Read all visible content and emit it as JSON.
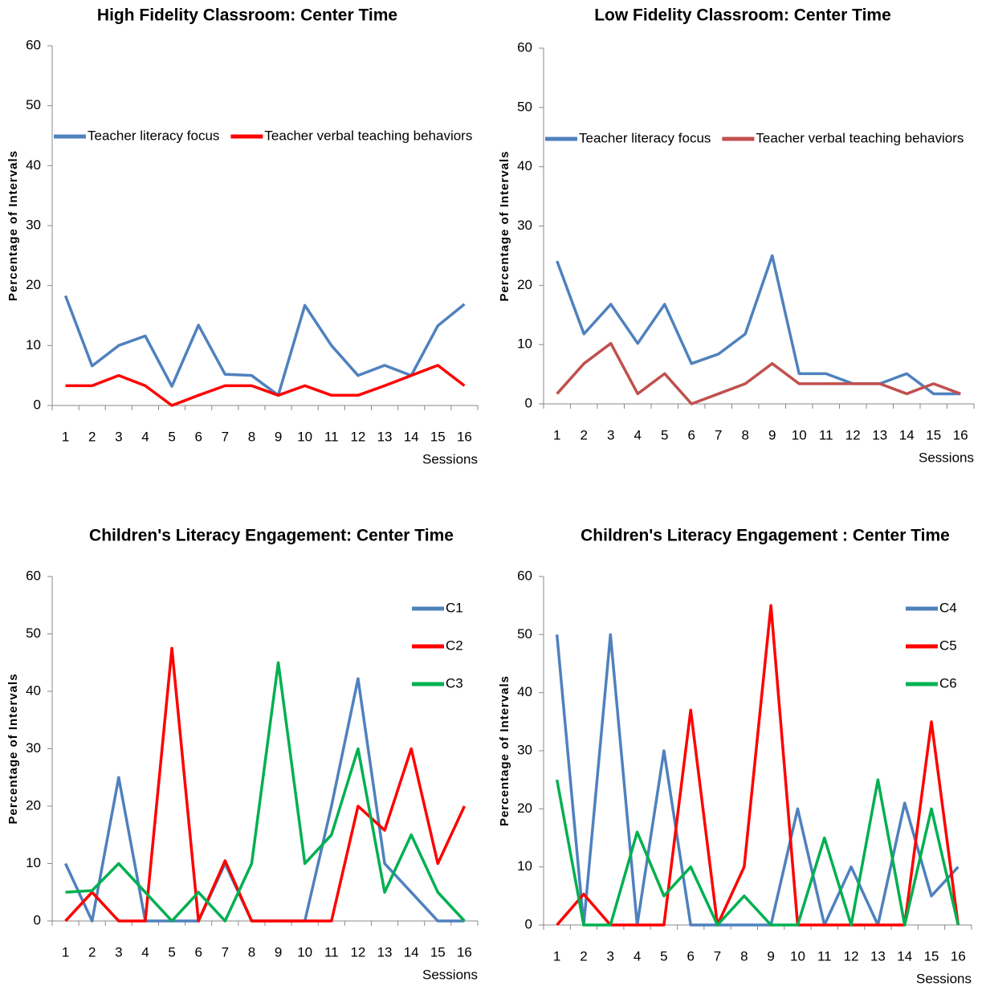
{
  "chart_data": [
    {
      "type": "line",
      "title": "High Fidelity  Classroom: Center Time",
      "y_label": "Percentage of Intervals",
      "x_label": "Sessions",
      "categories": [
        "1",
        "2",
        "3",
        "4",
        "5",
        "6",
        "7",
        "8",
        "9",
        "10",
        "11",
        "12",
        "13",
        "14",
        "15",
        "16"
      ],
      "series": [
        {
          "name": "Teacher literacy focus",
          "color": "#4f81bd",
          "values": [
            18.3,
            6.6,
            10,
            11.6,
            3.2,
            13.4,
            5.2,
            5,
            1.7,
            16.7,
            10,
            5,
            6.7,
            5,
            13.3,
            16.9
          ]
        },
        {
          "name": "Teacher verbal teaching behaviors",
          "color": "#ff0000",
          "values": [
            3.3,
            3.3,
            5,
            3.3,
            0,
            1.7,
            3.3,
            3.3,
            1.7,
            3.3,
            1.7,
            1.7,
            3.3,
            5,
            6.7,
            3.3
          ]
        }
      ],
      "ylim": [
        0,
        60
      ],
      "yticks": [
        0,
        10,
        20,
        30,
        40,
        50,
        60
      ],
      "legend": "top"
    },
    {
      "type": "line",
      "title": "Low Fidelity  Classroom: Center Time",
      "y_label": "Percentage of Intervals",
      "x_label": "Sessions",
      "categories": [
        "1",
        "2",
        "3",
        "4",
        "5",
        "6",
        "7",
        "8",
        "9",
        "10",
        "11",
        "12",
        "13",
        "14",
        "15",
        "16"
      ],
      "series": [
        {
          "name": "Teacher literacy focus",
          "color": "#4f81bd",
          "values": [
            24.1,
            11.8,
            16.8,
            10.2,
            16.8,
            6.8,
            8.4,
            11.8,
            25,
            5.1,
            5.1,
            3.4,
            3.4,
            5.1,
            1.7,
            1.7
          ]
        },
        {
          "name": "Teacher verbal teaching behaviors",
          "color": "#c0504d",
          "values": [
            1.7,
            6.8,
            10.2,
            1.7,
            5.1,
            0,
            1.7,
            3.4,
            6.8,
            3.4,
            3.4,
            3.4,
            3.4,
            1.7,
            3.4,
            1.7
          ]
        }
      ],
      "ylim": [
        0,
        60
      ],
      "yticks": [
        0,
        10,
        20,
        30,
        40,
        50,
        60
      ],
      "legend": "top"
    },
    {
      "type": "line",
      "title": "Children's Literacy Engagement: Center Time",
      "y_label": "Percentage of Intervals",
      "x_label": "Sessions",
      "categories": [
        "1",
        "2",
        "3",
        "4",
        "5",
        "6",
        "7",
        "8",
        "9",
        "10",
        "11",
        "12",
        "13",
        "14",
        "15",
        "16"
      ],
      "series": [
        {
          "name": "C1",
          "color": "#4f81bd",
          "values": [
            10,
            0,
            25,
            0,
            0,
            0,
            10,
            0,
            0,
            0,
            20,
            42.2,
            10,
            5,
            0,
            0
          ]
        },
        {
          "name": "C2",
          "color": "#ff0000",
          "values": [
            0,
            5,
            0,
            0,
            47.5,
            0,
            10.5,
            0,
            0,
            0,
            0,
            20,
            15.8,
            30,
            10,
            20
          ]
        },
        {
          "name": "C3",
          "color": "#00b050",
          "values": [
            5,
            5.3,
            10,
            5,
            0,
            5,
            0,
            10,
            45,
            10,
            15,
            30,
            5,
            15,
            5,
            0
          ]
        }
      ],
      "ylim": [
        0,
        60
      ],
      "yticks": [
        0,
        10,
        20,
        30,
        40,
        50,
        60
      ],
      "legend": "top-right"
    },
    {
      "type": "line",
      "title": "Children's Literacy Engagement : Center Time",
      "y_label": "Percentage of Intervals",
      "x_label": "Sessions",
      "categories": [
        "1",
        "2",
        "3",
        "4",
        "5",
        "6",
        "7",
        "8",
        "9",
        "10",
        "11",
        "12",
        "13",
        "14",
        "15",
        "16"
      ],
      "series": [
        {
          "name": "C4",
          "color": "#4f81bd",
          "values": [
            50,
            0,
            50,
            0,
            30,
            0,
            0,
            0,
            0,
            20,
            0,
            10,
            0,
            21,
            5,
            10
          ]
        },
        {
          "name": "C5",
          "color": "#ff0000",
          "values": [
            0,
            5.3,
            0,
            0,
            0,
            37,
            0,
            10,
            55,
            0,
            0,
            0,
            0,
            0,
            35,
            0
          ]
        },
        {
          "name": "C6",
          "color": "#00b050",
          "values": [
            25,
            0,
            0,
            16,
            5,
            10,
            0,
            5,
            0,
            0,
            15,
            0,
            25,
            0,
            20,
            0
          ]
        }
      ],
      "ylim": [
        0,
        60
      ],
      "yticks": [
        0,
        10,
        20,
        30,
        40,
        50,
        60
      ],
      "legend": "top-right"
    }
  ]
}
